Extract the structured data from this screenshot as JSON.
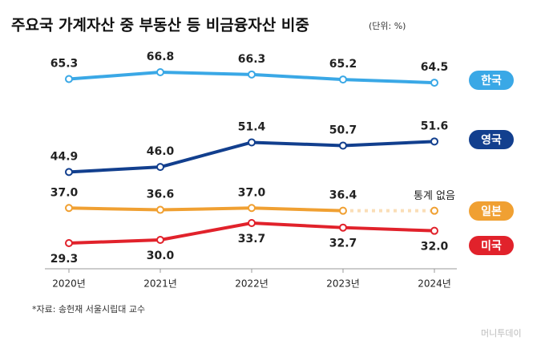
{
  "chart_data": {
    "type": "line",
    "title": "주요국 가계자산 중 부동산 등 비금융자산 비중",
    "subtitle": "(단위: %)",
    "source": "*자료: 송헌재 서울시립대 교수",
    "watermark": "머니투데이",
    "categories": [
      "2020년",
      "2021년",
      "2022년",
      "2023년",
      "2024년"
    ],
    "series": [
      {
        "name": "한국",
        "color": "#3aa8e6",
        "values": [
          65.3,
          66.8,
          66.3,
          65.2,
          64.5
        ],
        "value_labels": [
          "65.3",
          "66.8",
          "66.3",
          "65.2",
          "64.5"
        ]
      },
      {
        "name": "영국",
        "color": "#123f8e",
        "values": [
          44.9,
          46.0,
          51.4,
          50.7,
          51.6
        ],
        "value_labels": [
          "44.9",
          "46.0",
          "51.4",
          "50.7",
          "51.6"
        ]
      },
      {
        "name": "일본",
        "color": "#f0a032",
        "values": [
          37.0,
          36.6,
          37.0,
          36.4,
          null
        ],
        "value_labels": [
          "37.0",
          "36.6",
          "37.0",
          "36.4",
          null
        ],
        "note": "통계 없음"
      },
      {
        "name": "미국",
        "color": "#e1222b",
        "values": [
          29.3,
          30.0,
          33.7,
          32.7,
          32.0
        ],
        "value_labels": [
          "29.3",
          "30.0",
          "33.7",
          "32.7",
          "32.0"
        ]
      }
    ]
  }
}
